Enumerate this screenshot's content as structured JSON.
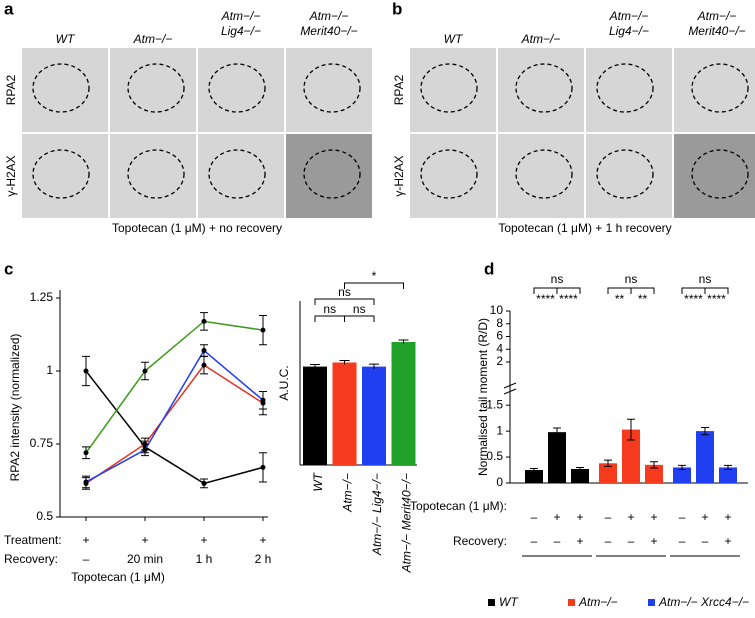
{
  "panel_labels": [
    "a",
    "b",
    "c",
    "d"
  ],
  "microscopy": [
    {
      "columns": [
        [
          "WT"
        ],
        [
          "Atm−/−"
        ],
        [
          "Atm−/−",
          "Lig4−/−"
        ],
        [
          "Atm−/−",
          "Merit40−/−"
        ]
      ],
      "rows": [
        "RPA2",
        "γ-H2AX"
      ],
      "caption": "Topotecan (1 μM) + no recovery"
    },
    {
      "columns": [
        [
          "WT"
        ],
        [
          "Atm−/−"
        ],
        [
          "Atm−/−",
          "Lig4−/−"
        ],
        [
          "Atm−/−",
          "Merit40−/−"
        ]
      ],
      "rows": [
        "RPA2",
        "γ-H2AX"
      ],
      "caption": "Topotecan (1 μM) + 1 h recovery"
    }
  ],
  "chart_data": [
    {
      "type": "line",
      "ylabel": "RPA2 intensity (normalized)",
      "ylim": [
        0.5,
        1.25
      ],
      "yticks": [
        0.5,
        0.75,
        1,
        1.25
      ],
      "categories": [
        "–",
        "20 min",
        "1 h",
        "2 h"
      ],
      "row_labels": [
        "Treatment:",
        "Recovery:"
      ],
      "treatment": [
        "+",
        "+",
        "+",
        "+"
      ],
      "xlabel": "Topotecan (1 μM)",
      "series": [
        {
          "color": "#000000",
          "values": [
            1.0,
            0.74,
            0.615,
            0.67
          ],
          "errors": [
            0.05,
            0.02,
            0.015,
            0.05
          ]
        },
        {
          "color": "#3a9a1c",
          "values": [
            0.72,
            1.0,
            1.17,
            1.14
          ],
          "errors": [
            0.02,
            0.03,
            0.03,
            0.05
          ]
        },
        {
          "color": "#e8321e",
          "values": [
            0.615,
            0.75,
            1.02,
            0.89
          ],
          "errors": [
            0.02,
            0.02,
            0.03,
            0.04
          ]
        },
        {
          "color": "#1f3ff0",
          "values": [
            0.62,
            0.73,
            1.07,
            0.9
          ],
          "errors": [
            0.02,
            0.02,
            0.02,
            0.03
          ]
        }
      ]
    },
    {
      "type": "bar",
      "ylabel": "A.U.C.",
      "ylim": [
        0,
        4
      ],
      "categories": [
        "WT",
        "Atm−/−",
        "Atm−/− Lig4−/−",
        "Atm−/− Merit40−/−"
      ],
      "colors": [
        "#000000",
        "#f53a1e",
        "#1f3ff0",
        "#22a12a"
      ],
      "values": [
        2.4,
        2.5,
        2.4,
        3.0
      ],
      "errors": [
        0.05,
        0.05,
        0.06,
        0.05
      ],
      "significance": [
        "ns",
        "ns",
        "ns",
        "*"
      ]
    },
    {
      "type": "grouped_bar",
      "ylabel": "Normalised tail moment (R/D)",
      "ylim": [
        0,
        10
      ],
      "yticks": [
        0,
        0.5,
        1,
        1.5,
        2,
        4,
        6,
        8,
        10
      ],
      "axis_break": [
        1.6,
        2
      ],
      "rows": [
        {
          "label": "Topotecan (1 μM):",
          "values": [
            "–",
            "+",
            "+"
          ]
        },
        {
          "label": "Recovery:",
          "values": [
            "–",
            "–",
            "+"
          ]
        }
      ],
      "series": [
        {
          "name": "WT",
          "color": "#000000",
          "values": [
            0.25,
            0.98,
            0.27
          ],
          "errors": [
            0.03,
            0.08,
            0.03
          ]
        },
        {
          "name": "Atm−/−",
          "color": "#f53a1e",
          "values": [
            0.38,
            1.03,
            0.35
          ],
          "errors": [
            0.06,
            0.2,
            0.06
          ]
        },
        {
          "name": "Atm−/− Xrcc4−/−",
          "color": "#1f3ff0",
          "values": [
            0.3,
            1.0,
            0.3
          ],
          "errors": [
            0.04,
            0.07,
            0.04
          ]
        }
      ],
      "significance": [
        [
          "ns",
          "****",
          "****"
        ],
        [
          "ns",
          "**",
          "**"
        ],
        [
          "ns",
          "****",
          "****"
        ]
      ]
    }
  ]
}
